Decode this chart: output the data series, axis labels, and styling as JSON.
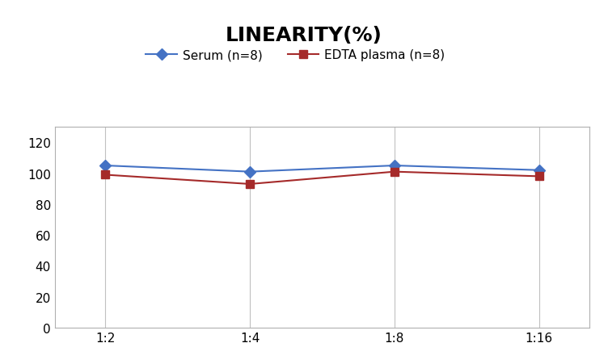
{
  "title": "LINEARITY(%)",
  "title_fontsize": 18,
  "title_fontweight": "bold",
  "x_labels": [
    "1:2",
    "1:4",
    "1:8",
    "1:16"
  ],
  "x_positions": [
    0,
    1,
    2,
    3
  ],
  "serum_values": [
    105,
    101,
    105,
    102
  ],
  "edta_values": [
    99,
    93,
    101,
    98
  ],
  "serum_color": "#4472C4",
  "edta_color": "#A52A2A",
  "serum_label": "Serum (n=8)",
  "edta_label": "EDTA plasma (n=8)",
  "ylim": [
    0,
    130
  ],
  "yticks": [
    0,
    20,
    40,
    60,
    80,
    100,
    120
  ],
  "grid_color": "#C0C0C0",
  "background_color": "#FFFFFF",
  "legend_fontsize": 11,
  "tick_fontsize": 11,
  "marker_size": 7,
  "linewidth": 1.5
}
